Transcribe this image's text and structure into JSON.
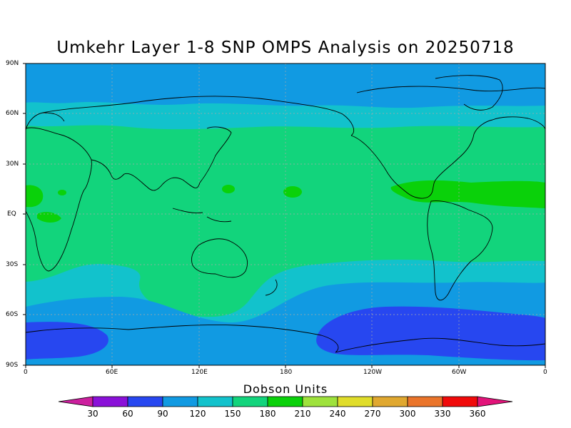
{
  "title": "Umkehr Layer 1-8 SNP OMPS Analysis on 20250718",
  "colorbar": {
    "title": "Dobson Units",
    "labels": [
      "30",
      "60",
      "90",
      "120",
      "150",
      "180",
      "210",
      "240",
      "270",
      "300",
      "330",
      "360"
    ],
    "colors": [
      "#cc1f9e",
      "#8a10d8",
      "#2747f0",
      "#119ae2",
      "#12c2cc",
      "#12d47c",
      "#0ad10a",
      "#9ee23c",
      "#e0dd2a",
      "#e0a830",
      "#ea742a",
      "#f00a0a",
      "#e2137a"
    ]
  },
  "axes": {
    "lat_labels": [
      "90N",
      "60N",
      "30N",
      "EQ",
      "30S",
      "60S",
      "90S"
    ],
    "lon_labels": [
      "0",
      "60E",
      "120E",
      "180",
      "120W",
      "60W",
      "0"
    ]
  },
  "chart_data": {
    "type": "map",
    "title": "Umkehr Layer 1-8 SNP OMPS Analysis on 20250718",
    "units": "Dobson Units",
    "projection": "cylindrical equidistant",
    "lon_range": [
      0,
      360
    ],
    "lat_range": [
      -90,
      90
    ],
    "levels": [
      30,
      60,
      90,
      120,
      150,
      180,
      210,
      240,
      270,
      300,
      330,
      360
    ],
    "field_regions": [
      {
        "lat_band": "90N-68N",
        "value_range": [
          90,
          120
        ]
      },
      {
        "lat_band": "68N-55N",
        "value_range": [
          120,
          150
        ]
      },
      {
        "lat_band": "55N-40S",
        "value_range": [
          150,
          180
        ]
      },
      {
        "lat_band": "10N-20N (Atlantic/Caribbean)",
        "value_range": [
          180,
          210
        ]
      },
      {
        "lat_band": "40S-55S",
        "value_range": [
          120,
          150
        ]
      },
      {
        "lat_band": "55S-90S",
        "value_range": [
          90,
          120
        ]
      },
      {
        "lat_band": "60S-85S (Antarctic lobes)",
        "value_range": [
          60,
          90
        ]
      }
    ],
    "grid": true
  }
}
